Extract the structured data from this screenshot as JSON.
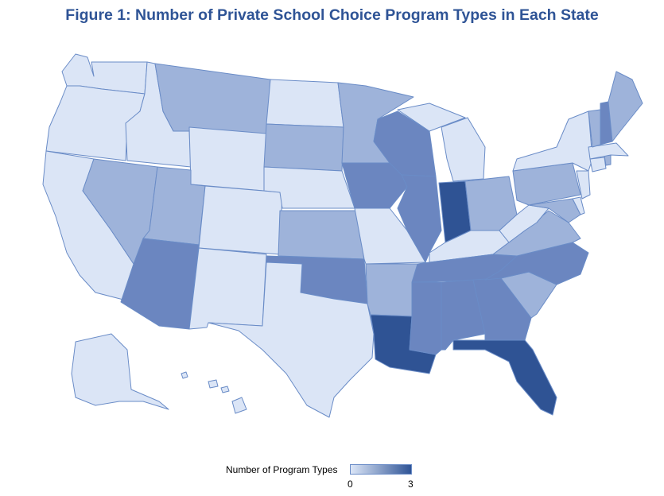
{
  "title": "Figure 1: Number of Private School Choice Program Types in Each State",
  "legend": {
    "label": "Number of Program Types",
    "min_label": "0",
    "max_label": "3",
    "min_color": "#dce6f7",
    "max_color": "#2f5496"
  },
  "scale_colors": [
    "#dbe5f6",
    "#9eb3da",
    "#6b86c0",
    "#2f5394"
  ],
  "states": {
    "WA": 0,
    "OR": 0,
    "CA": 0,
    "ID": 0,
    "NV": 1,
    "MT": 1,
    "WY": 0,
    "UT": 1,
    "AZ": 2,
    "CO": 0,
    "NM": 0,
    "ND": 0,
    "SD": 1,
    "NE": 0,
    "KS": 1,
    "OK": 2,
    "TX": 0,
    "MN": 1,
    "IA": 2,
    "MO": 0,
    "AR": 1,
    "LA": 3,
    "WI": 2,
    "IL": 2,
    "MI": 0,
    "IN": 3,
    "OH": 1,
    "KY": 0,
    "TN": 2,
    "MS": 2,
    "AL": 2,
    "GA": 2,
    "FL": 3,
    "SC": 1,
    "NC": 2,
    "VA": 1,
    "WV": 0,
    "MD": 1,
    "DE": 0,
    "PA": 1,
    "NJ": 0,
    "NY": 0,
    "CT": 0,
    "RI": 1,
    "MA": 0,
    "VT": 1,
    "NH": 2,
    "ME": 1,
    "AK": 0,
    "HI": 0
  }
}
